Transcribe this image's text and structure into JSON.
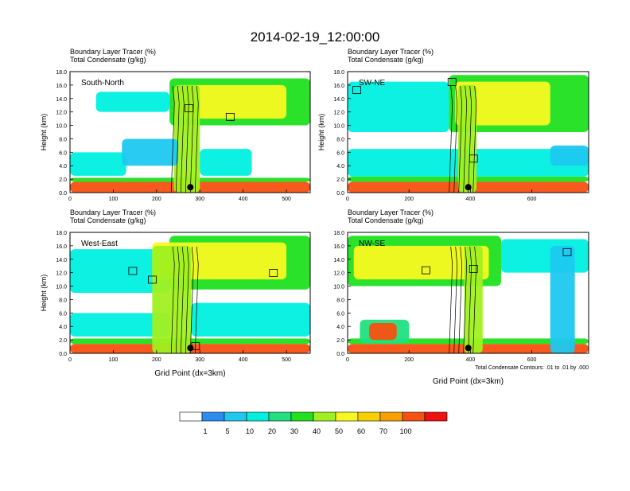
{
  "page": {
    "title": "2014-02-19_12:00:00",
    "footnote": "Total Condensate Contours: .01 to .01 by .000"
  },
  "colors": {
    "scale": [
      "#ffffff",
      "#2e8cf0",
      "#1ec8f0",
      "#00f0e0",
      "#20e080",
      "#20e020",
      "#a0f020",
      "#f8f820",
      "#f8d000",
      "#f8a000",
      "#f85010",
      "#f01010"
    ],
    "contour": "#000000",
    "marker": "#000000"
  },
  "colorbar": {
    "tick_labels": [
      "1",
      "5",
      "10",
      "20",
      "30",
      "40",
      "50",
      "60",
      "70",
      "100"
    ]
  },
  "chart_data": [
    {
      "type": "heatmap",
      "panel_label": "South-North",
      "header_line1": "Boundary Layer Tracer   (%)",
      "header_line2": "Total Condensate   (g/kg)",
      "ylabel": "Height (km)",
      "xlabel": "",
      "xlim": [
        0,
        555
      ],
      "ylim": [
        0,
        18
      ],
      "xticks": [
        0,
        100,
        200,
        300,
        400,
        500
      ],
      "yticks": [
        "0.0",
        "2.0",
        "4.0",
        "6.0",
        "8.0",
        "10.0",
        "12.0",
        "14.0",
        "16.0",
        "18.0"
      ],
      "marker_x": 278,
      "tags": [
        {
          "x": 275,
          "y": 12.5
        },
        {
          "x": 370,
          "y": 11.2
        }
      ],
      "bands": [
        {
          "x0": 0,
          "x1": 555,
          "y0": 0,
          "y1": 1.6,
          "level": 10
        },
        {
          "x0": 0,
          "x1": 555,
          "y0": 1.6,
          "y1": 2.2,
          "level": 5
        },
        {
          "x0": 60,
          "x1": 230,
          "y0": 12.0,
          "y1": 15.0,
          "level": 3
        },
        {
          "x0": 0,
          "x1": 130,
          "y0": 2.5,
          "y1": 6.0,
          "level": 3
        },
        {
          "x0": 230,
          "x1": 555,
          "y0": 10.0,
          "y1": 17.0,
          "level": 5
        },
        {
          "x0": 250,
          "x1": 500,
          "y0": 11.0,
          "y1": 16.0,
          "level": 7
        },
        {
          "x0": 240,
          "x1": 300,
          "y0": 0,
          "y1": 16.0,
          "level": 6
        },
        {
          "x0": 120,
          "x1": 250,
          "y0": 4.0,
          "y1": 8.0,
          "level": 2
        },
        {
          "x0": 300,
          "x1": 420,
          "y0": 2.5,
          "y1": 6.5,
          "level": 3
        }
      ]
    },
    {
      "type": "heatmap",
      "panel_label": "SW-NE",
      "header_line1": "Boundary Layer Tracer   (%)",
      "header_line2": "Total Condensate   (g/kg)",
      "ylabel": "Height (km)",
      "xlabel": "",
      "xlim": [
        0,
        785
      ],
      "ylim": [
        0,
        18
      ],
      "xticks": [
        0,
        200,
        400,
        600
      ],
      "yticks": [
        "0.0",
        "2.0",
        "4.0",
        "6.0",
        "8.0",
        "10.0",
        "12.0",
        "14.0",
        "16.0",
        "18.0"
      ],
      "marker_x": 393,
      "tags": [
        {
          "x": 30,
          "y": 15.2
        },
        {
          "x": 340,
          "y": 16.4
        },
        {
          "x": 410,
          "y": 5.0
        }
      ],
      "bands": [
        {
          "x0": 0,
          "x1": 785,
          "y0": 0,
          "y1": 1.6,
          "level": 10
        },
        {
          "x0": 0,
          "x1": 785,
          "y0": 1.6,
          "y1": 2.4,
          "level": 5
        },
        {
          "x0": 0,
          "x1": 785,
          "y0": 2.4,
          "y1": 6.5,
          "level": 3
        },
        {
          "x0": 0,
          "x1": 330,
          "y0": 9.0,
          "y1": 16.5,
          "level": 3
        },
        {
          "x0": 330,
          "x1": 785,
          "y0": 9.0,
          "y1": 17.5,
          "level": 5
        },
        {
          "x0": 350,
          "x1": 660,
          "y0": 10.0,
          "y1": 16.5,
          "level": 7
        },
        {
          "x0": 360,
          "x1": 420,
          "y0": 0,
          "y1": 16.0,
          "level": 6
        },
        {
          "x0": 660,
          "x1": 785,
          "y0": 4.0,
          "y1": 7.0,
          "level": 2
        }
      ]
    },
    {
      "type": "heatmap",
      "panel_label": "West-East",
      "header_line1": "Boundary Layer Tracer   (%)",
      "header_line2": "Total Condensate   (g/kg)",
      "ylabel": "Height (km)",
      "xlabel": "Grid Point (dx=3km)",
      "xlim": [
        0,
        555
      ],
      "ylim": [
        0,
        18
      ],
      "xticks": [
        0,
        100,
        200,
        300,
        400,
        500
      ],
      "yticks": [
        "0.0",
        "2.0",
        "4.0",
        "6.0",
        "8.0",
        "10.0",
        "12.0",
        "14.0",
        "16.0",
        "18.0"
      ],
      "marker_x": 278,
      "tags": [
        {
          "x": 145,
          "y": 12.2
        },
        {
          "x": 190,
          "y": 10.9
        },
        {
          "x": 290,
          "y": 1.0
        },
        {
          "x": 470,
          "y": 11.9
        }
      ],
      "bands": [
        {
          "x0": 0,
          "x1": 555,
          "y0": 0,
          "y1": 1.4,
          "level": 10
        },
        {
          "x0": 0,
          "x1": 555,
          "y0": 1.4,
          "y1": 2.2,
          "level": 5
        },
        {
          "x0": 0,
          "x1": 230,
          "y0": 9.0,
          "y1": 15.5,
          "level": 3
        },
        {
          "x0": 0,
          "x1": 230,
          "y0": 2.5,
          "y1": 6.0,
          "level": 3
        },
        {
          "x0": 230,
          "x1": 555,
          "y0": 9.5,
          "y1": 17.5,
          "level": 5
        },
        {
          "x0": 190,
          "x1": 500,
          "y0": 11.0,
          "y1": 16.5,
          "level": 7
        },
        {
          "x0": 190,
          "x1": 280,
          "y0": 0,
          "y1": 16.0,
          "level": 6
        },
        {
          "x0": 280,
          "x1": 555,
          "y0": 2.5,
          "y1": 7.5,
          "level": 3
        }
      ]
    },
    {
      "type": "heatmap",
      "panel_label": "NW-SE",
      "header_line1": "Boundary Layer Tracer   (%)",
      "header_line2": "Total Condensate   (g/kg)",
      "ylabel": "",
      "xlabel": "Grid Point (dx=3km)",
      "xlim": [
        0,
        785
      ],
      "ylim": [
        0,
        18
      ],
      "xticks": [
        0,
        200,
        400,
        600
      ],
      "yticks": [
        "0.0",
        "2.0",
        "4.0",
        "6.0",
        "8.0",
        "10.0",
        "12.0",
        "14.0",
        "16.0",
        "18.0"
      ],
      "marker_x": 393,
      "tags": [
        {
          "x": 255,
          "y": 12.3
        },
        {
          "x": 410,
          "y": 12.5
        },
        {
          "x": 715,
          "y": 15.0
        }
      ],
      "bands": [
        {
          "x0": 0,
          "x1": 785,
          "y0": 0,
          "y1": 1.4,
          "level": 10
        },
        {
          "x0": 0,
          "x1": 785,
          "y0": 1.4,
          "y1": 2.2,
          "level": 5
        },
        {
          "x0": 0,
          "x1": 500,
          "y0": 10.0,
          "y1": 17.5,
          "level": 5
        },
        {
          "x0": 20,
          "x1": 460,
          "y0": 11.0,
          "y1": 16.0,
          "level": 7
        },
        {
          "x0": 380,
          "x1": 440,
          "y0": 0,
          "y1": 16.0,
          "level": 6
        },
        {
          "x0": 40,
          "x1": 200,
          "y0": 1.5,
          "y1": 5.0,
          "level": 4
        },
        {
          "x0": 70,
          "x1": 160,
          "y0": 2.0,
          "y1": 4.5,
          "level": 10
        },
        {
          "x0": 500,
          "x1": 785,
          "y0": 12.0,
          "y1": 17.0,
          "level": 3
        },
        {
          "x0": 660,
          "x1": 740,
          "y0": 0,
          "y1": 16.0,
          "level": 2
        }
      ]
    }
  ]
}
